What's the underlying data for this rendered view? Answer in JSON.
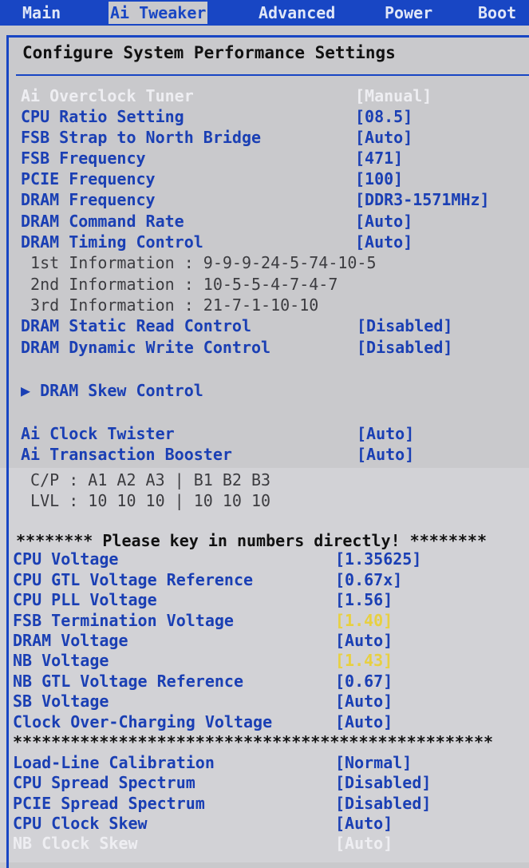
{
  "tabs": [
    {
      "label": "Main",
      "active": false
    },
    {
      "label": "Ai Tweaker",
      "active": true
    },
    {
      "label": "Advanced",
      "active": false
    },
    {
      "label": "Power",
      "active": false
    },
    {
      "label": "Boot",
      "active": false
    }
  ],
  "title": "Configure System Performance Settings",
  "colors": {
    "accent": "#1846c4",
    "text": "#1a3fb4",
    "background": "#c9c9cc",
    "highlight_value": "#e8d040",
    "disabled": "#eeeef2"
  },
  "rows": [
    {
      "label": "Ai Overclock Tuner",
      "value": "[Manual]",
      "style": "dim"
    },
    {
      "label": "CPU Ratio Setting",
      "value": "[08.5]"
    },
    {
      "label": "FSB Strap to North Bridge",
      "value": "[Auto]"
    },
    {
      "label": "FSB Frequency",
      "value": "[471]"
    },
    {
      "label": "PCIE Frequency",
      "value": "[100]"
    },
    {
      "label": "DRAM Frequency",
      "value": "[DDR3-1571MHz]"
    },
    {
      "label": "DRAM Command Rate",
      "value": "[Auto]"
    },
    {
      "label": "DRAM Timing Control",
      "value": "[Auto]"
    },
    {
      "label": " 1st Information : 9-9-9-24-5-74-10-5",
      "value": "",
      "style": "info"
    },
    {
      "label": " 2nd Information : 10-5-5-4-7-4-7",
      "value": "",
      "style": "info"
    },
    {
      "label": " 3rd Information : 21-7-1-10-10",
      "value": "",
      "style": "info"
    },
    {
      "label": "DRAM Static Read Control",
      "value": "[Disabled]"
    },
    {
      "label": "DRAM Dynamic Write Control",
      "value": "[Disabled]"
    },
    {
      "label": "▶ DRAM Skew Control",
      "value": "",
      "submenu": true
    },
    {
      "label": "Ai Clock Twister",
      "value": "[Auto]"
    },
    {
      "label": "Ai Transaction Booster",
      "value": "[Auto]"
    },
    {
      "label": " C/P : A1 A2 A3 | B1 B2 B3",
      "value": "",
      "style": "info"
    },
    {
      "label": " LVL : 10 10 10 | 10 10 10",
      "value": "",
      "style": "info"
    },
    {
      "label": "******** Please key in numbers directly! ********",
      "value": "",
      "style": "dark"
    },
    {
      "label": "CPU Voltage",
      "value": "[1.35625]"
    },
    {
      "label": "CPU GTL Voltage Reference",
      "value": "[0.67x]"
    },
    {
      "label": "CPU PLL Voltage",
      "value": "[1.56]"
    },
    {
      "label": "FSB Termination Voltage",
      "value": "[1.40]",
      "value_style": "yellow"
    },
    {
      "label": "DRAM Voltage",
      "value": "[Auto]"
    },
    {
      "label": "NB Voltage",
      "value": "[1.43]",
      "value_style": "yellow"
    },
    {
      "label": "NB GTL Voltage Reference",
      "value": "[0.67]"
    },
    {
      "label": "SB Voltage",
      "value": "[Auto]"
    },
    {
      "label": "Clock Over-Charging Voltage",
      "value": "[Auto]"
    },
    {
      "label": "**************************************************",
      "value": "",
      "style": "dark"
    },
    {
      "label": "Load-Line Calibration",
      "value": "[Normal]"
    },
    {
      "label": "CPU Spread Spectrum",
      "value": "[Disabled]"
    },
    {
      "label": "PCIE Spread Spectrum",
      "value": "[Disabled]"
    },
    {
      "label": "CPU Clock Skew",
      "value": "[Auto]"
    },
    {
      "label": "NB Clock Skew",
      "value": "[Auto]",
      "style": "dim"
    }
  ]
}
